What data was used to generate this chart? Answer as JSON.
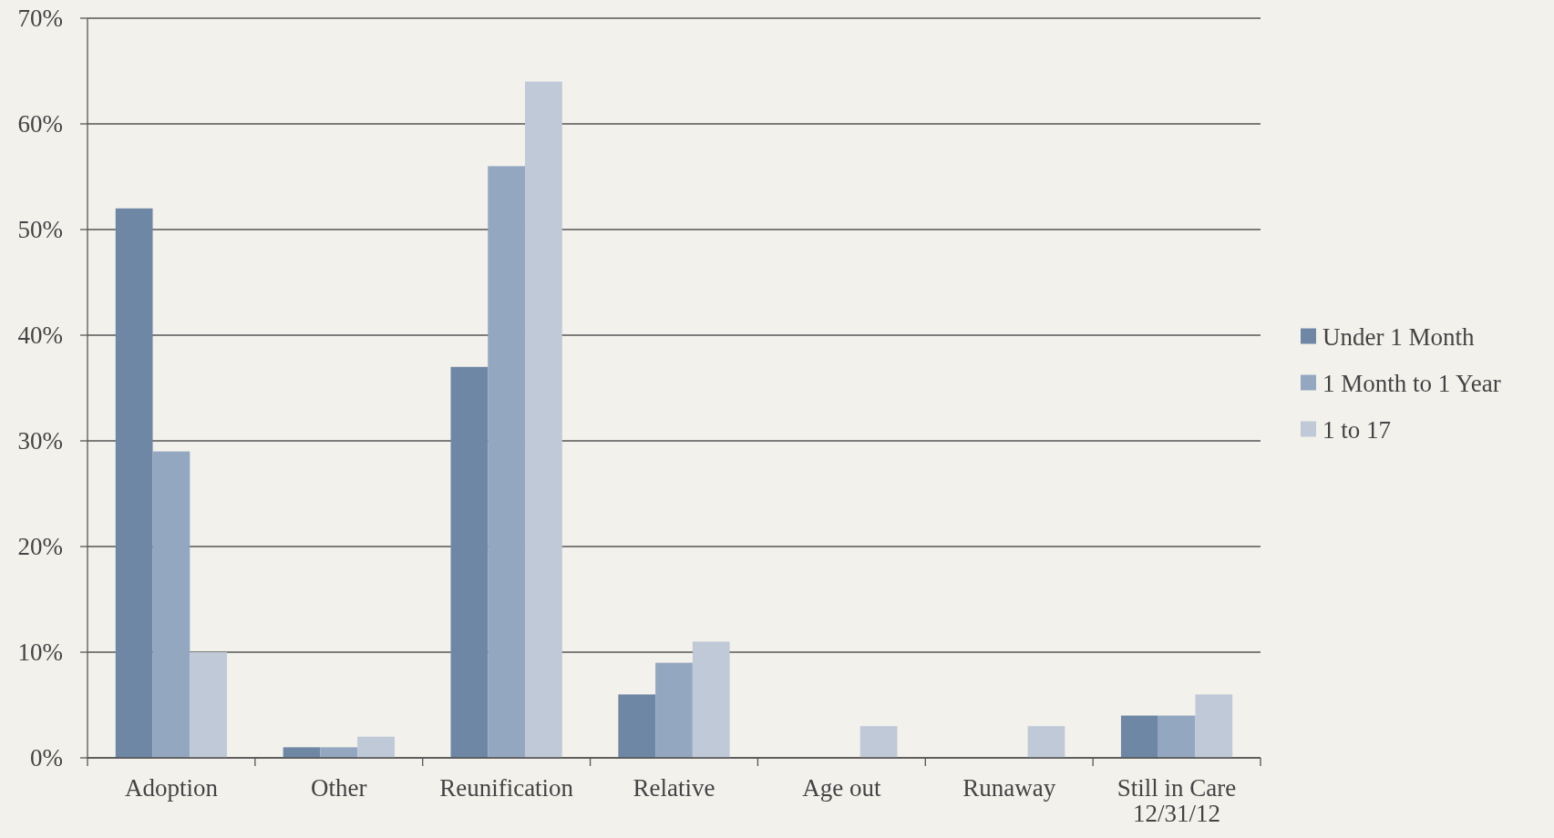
{
  "chart_data": {
    "type": "bar",
    "categories": [
      "Adoption",
      "Other",
      "Reunification",
      "Relative",
      "Age out",
      "Runaway",
      "Still in Care 12/31/12"
    ],
    "series": [
      {
        "name": "Under 1 Month",
        "color": "#6e87a5",
        "values": [
          52,
          1,
          37,
          6,
          0,
          0,
          4
        ]
      },
      {
        "name": "1 Month to 1 Year",
        "color": "#94a7c0",
        "values": [
          29,
          1,
          56,
          9,
          0,
          0,
          4
        ]
      },
      {
        "name": "1 to 17",
        "color": "#bfc9d7",
        "values": [
          10,
          2,
          64,
          11,
          3,
          3,
          6
        ]
      }
    ],
    "ylim": [
      0,
      70
    ],
    "yticks": [
      {
        "value": 0,
        "label": "0%"
      },
      {
        "value": 10,
        "label": "10%"
      },
      {
        "value": 20,
        "label": "20%"
      },
      {
        "value": 30,
        "label": "30%"
      },
      {
        "value": 40,
        "label": "40%"
      },
      {
        "value": 50,
        "label": "50%"
      },
      {
        "value": 60,
        "label": "60%"
      },
      {
        "value": 70,
        "label": "70%"
      }
    ],
    "grid": "y",
    "legend": "right"
  }
}
